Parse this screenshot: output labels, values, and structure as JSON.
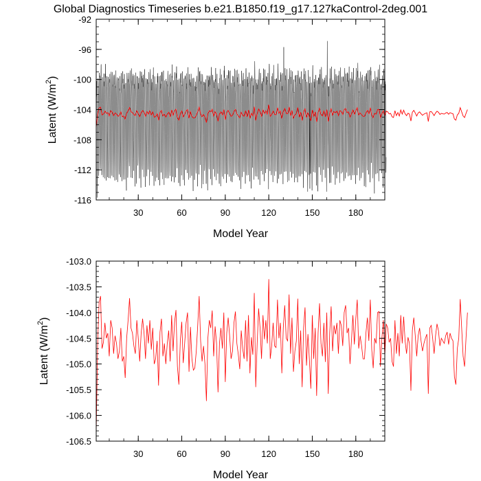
{
  "figure": {
    "title": "Global Diagnostics Timeseries b.e21.B1850.f19_g17.127kaControl-2deg.001"
  },
  "colors": {
    "monthly": "#000000",
    "annual": "#ff0000",
    "axis": "#000000",
    "background": "#ffffff"
  },
  "chart_data": [
    {
      "type": "line",
      "panel": "top",
      "title": "Global Diagnostics Timeseries b.e21.B1850.f19_g17.127kaControl-2deg.001",
      "xlabel": "Model Year",
      "ylabel_main": "Latent (W/m",
      "ylabel_sup": "2",
      "ylabel_close": ")",
      "xlim": [
        1,
        200
      ],
      "ylim": [
        -116,
        -92
      ],
      "xticks": [
        30,
        60,
        90,
        120,
        150,
        180
      ],
      "xtick_labels": [
        "30",
        "60",
        "90",
        "120",
        "150",
        "180"
      ],
      "yticks": [
        -116,
        -112,
        -108,
        -104,
        -100,
        -96,
        -92
      ],
      "ytick_labels": [
        "-116",
        "-112",
        "-108",
        "-104",
        "-100",
        "-96",
        "-92"
      ],
      "grid": false,
      "series": [
        {
          "role": "monthly",
          "color": "#000000",
          "annual_cycle_high_range": [
            -103.5,
            -97.2
          ],
          "annual_cycle_low_range": [
            -113.6,
            -106.0
          ],
          "notable_extremes": [
            {
              "x": 160,
              "y": -94.9
            },
            {
              "x": 148,
              "y": -114.5
            },
            {
              "x": 130,
              "y": -95.7
            }
          ]
        },
        {
          "role": "annual mean",
          "color": "#ff0000",
          "source": "same as bottom panel values"
        }
      ]
    },
    {
      "type": "line",
      "panel": "bottom",
      "xlabel": "Model Year",
      "ylabel_main": "Latent (W/m",
      "ylabel_sup": "2",
      "ylabel_close": ")",
      "xlim": [
        1,
        200
      ],
      "ylim": [
        -106.5,
        -103.0
      ],
      "xticks": [
        30,
        60,
        90,
        120,
        150,
        180
      ],
      "xtick_labels": [
        "30",
        "60",
        "90",
        "120",
        "150",
        "180"
      ],
      "yticks": [
        -106.5,
        -106.0,
        -105.5,
        -105.0,
        -104.5,
        -104.0,
        -103.5,
        -103.0
      ],
      "ytick_labels": [
        "-106.5",
        "-106.0",
        "-105.5",
        "-105.0",
        "-104.5",
        "-104.0",
        "-103.5",
        "-103.0"
      ],
      "grid": false,
      "series": [
        {
          "role": "annual mean",
          "color": "#ff0000",
          "x_start": 1,
          "x_step": 1,
          "values": [
            -106.35,
            -104.6,
            -103.8,
            -103.68,
            -104.7,
            -104.58,
            -104.2,
            -104.5,
            -104.4,
            -104.85,
            -104.15,
            -104.3,
            -104.8,
            -104.45,
            -104.6,
            -104.9,
            -104.75,
            -104.3,
            -104.95,
            -104.85,
            -105.27,
            -104.5,
            -104.15,
            -103.72,
            -104.3,
            -104.4,
            -104.65,
            -104.8,
            -104.15,
            -104.5,
            -104.95,
            -104.4,
            -104.12,
            -104.4,
            -104.9,
            -104.25,
            -104.6,
            -104.15,
            -104.72,
            -104.3,
            -105.0,
            -104.9,
            -104.55,
            -105.42,
            -104.38,
            -104.12,
            -104.85,
            -104.6,
            -105.0,
            -104.6,
            -104.35,
            -104.95,
            -104.05,
            -104.75,
            -104.2,
            -103.95,
            -105.05,
            -105.4,
            -104.55,
            -104.18,
            -104.98,
            -104.6,
            -104.2,
            -104.0,
            -105.15,
            -104.28,
            -104.9,
            -105.12,
            -105.08,
            -104.75,
            -104.25,
            -103.68,
            -104.55,
            -104.95,
            -104.65,
            -105.0,
            -105.72,
            -104.5,
            -104.15,
            -104.3,
            -103.96,
            -104.85,
            -104.27,
            -104.6,
            -105.55,
            -104.6,
            -104.3,
            -104.7,
            -104.0,
            -105.35,
            -104.4,
            -104.1,
            -104.45,
            -104.9,
            -104.75,
            -104.2,
            -103.98,
            -104.6,
            -104.82,
            -105.1,
            -104.35,
            -104.7,
            -104.9,
            -104.15,
            -104.95,
            -104.05,
            -105.18,
            -104.48,
            -104.82,
            -103.62,
            -105.45,
            -104.6,
            -103.92,
            -104.3,
            -104.9,
            -104.05,
            -104.52,
            -104.15,
            -104.6,
            -103.35,
            -104.9,
            -104.65,
            -104.2,
            -104.65,
            -104.68,
            -103.75,
            -104.5,
            -104.2,
            -105.18,
            -104.3,
            -103.86,
            -104.5,
            -104.55,
            -103.65,
            -104.8,
            -104.1,
            -105.15,
            -104.75,
            -104.55,
            -103.73,
            -105.0,
            -104.35,
            -105.45,
            -104.3,
            -103.9,
            -105.03,
            -104.42,
            -104.92,
            -105.48,
            -104.05,
            -104.9,
            -104.3,
            -105.62,
            -104.4,
            -103.82,
            -104.6,
            -104.85,
            -104.2,
            -104.96,
            -104.0,
            -105.58,
            -104.4,
            -103.88,
            -104.75,
            -104.25,
            -104.42,
            -104.2,
            -104.8,
            -104.15,
            -104.25,
            -104.65,
            -104.0,
            -103.86,
            -104.4,
            -104.3,
            -105.0,
            -104.55,
            -104.05,
            -104.62,
            -104.12,
            -103.75,
            -104.7,
            -104.45,
            -104.65,
            -104.9,
            -104.9,
            -104.4,
            -104.1,
            -104.55,
            -103.75,
            -104.72,
            -105.08,
            -104.5,
            -104.6,
            -104.0,
            -103.98,
            -105.05,
            -104.5,
            -104.15,
            -104.85,
            -104.22,
            -104.3,
            -104.58,
            -104.5,
            -104.95,
            -105.05,
            -104.15,
            -104.8,
            -104.4,
            -104.85,
            -104.05,
            -104.6,
            -104.08,
            -104.55,
            -104.8,
            -104.48,
            -104.6,
            -105.52,
            -104.35,
            -104.1,
            -104.45,
            -104.85,
            -104.45,
            -104.3,
            -104.55,
            -104.75,
            -104.6,
            -104.5,
            -104.42,
            -105.58,
            -104.3,
            -104.25,
            -104.5,
            -104.8,
            -104.45,
            -104.22,
            -104.35,
            -104.65,
            -104.5,
            -104.55,
            -104.6,
            -104.45,
            -104.38,
            -104.62,
            -104.4,
            -104.5,
            -104.55,
            -105.25,
            -105.4,
            -104.7,
            -104.5,
            -103.74,
            -104.3,
            -104.85,
            -105.05,
            -104.5,
            -104.0
          ]
        }
      ]
    }
  ]
}
